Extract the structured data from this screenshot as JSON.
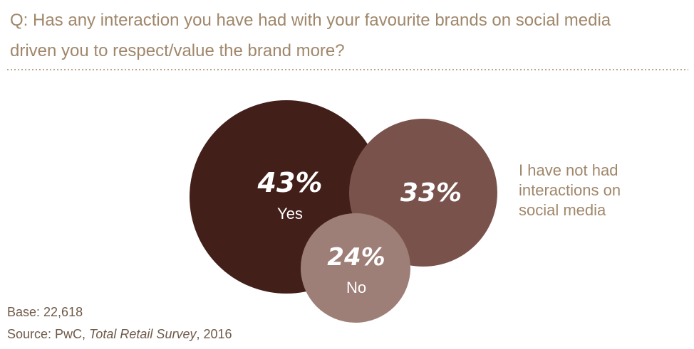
{
  "question": {
    "line1": "Q: Has any interaction you have had with your favourite brands on social media",
    "line2": "driven you to respect/value the brand more?"
  },
  "chart_data": {
    "type": "bubble",
    "title": "Q: Has any interaction you have had with your favourite brands on social media driven you to respect/value the brand more?",
    "series": [
      {
        "label": "Yes",
        "value": 43,
        "value_label": "43%",
        "color": "#431f1a"
      },
      {
        "label": "I have not had interactions on social media",
        "value": 33,
        "value_label": "33%",
        "color": "#7a524c"
      },
      {
        "label": "No",
        "value": 24,
        "value_label": "24%",
        "color": "#9d7f77"
      }
    ]
  },
  "side_label": {
    "line1": "I have not had",
    "line2": "interactions on",
    "line3": "social media"
  },
  "footer": {
    "base": "Base: 22,618",
    "source_prefix": "Source: PwC, ",
    "source_title": "Total Retail Survey",
    "source_suffix": ", 2016"
  },
  "colors": {
    "question_text": "#a0876b",
    "divider": "#b9a590",
    "footer_text": "#6e5a48"
  }
}
